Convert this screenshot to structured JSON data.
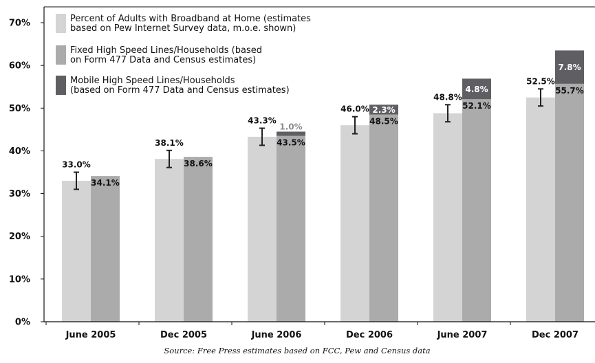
{
  "chart_data": {
    "type": "bar",
    "categories": [
      "June 2005",
      "Dec 2005",
      "June 2006",
      "Dec 2006",
      "June 2007",
      "Dec 2007"
    ],
    "ylim": [
      0,
      70
    ],
    "yticks": [
      0,
      10,
      20,
      30,
      40,
      50,
      60,
      70
    ],
    "ytick_labels": [
      "0%",
      "10%",
      "20%",
      "30%",
      "40%",
      "50%",
      "60%",
      "70%"
    ],
    "grid": false,
    "legend_position": "top-left",
    "source": "Source: Free Press estimates based on FCC, Pew and Census data",
    "series": [
      {
        "name": "Percent of Adults with Broadband at Home (estimates based on Pew Internet Survey data, m.o.e. shown)",
        "legend_lines": [
          "Percent of Adults with Broadband at Home (estimates",
          "based on Pew Internet Survey data, m.o.e. shown)"
        ],
        "values": [
          33.0,
          38.1,
          43.3,
          46.0,
          48.8,
          52.5
        ],
        "labels": [
          "33.0%",
          "38.1%",
          "43.3%",
          "46.0%",
          "48.8%",
          "52.5%"
        ],
        "error_margin": [
          2,
          2,
          2,
          2,
          2,
          2
        ],
        "color": "#d4d4d4"
      },
      {
        "name": "Fixed High Speed Lines/Households (based on Form 477 Data and Census estimates)",
        "legend_lines": [
          "Fixed High Speed Lines/Households (based",
          "on Form 477 Data and Census estimates)"
        ],
        "values": [
          34.1,
          38.6,
          43.5,
          48.5,
          52.1,
          55.7
        ],
        "labels": [
          "34.1%",
          "38.6%",
          "43.5%",
          "48.5%",
          "52.1%",
          "55.7%"
        ],
        "color": "#ababab"
      },
      {
        "name": "Mobile High Speed Lines/Households (based on Form 477 Data and Census estimates)",
        "legend_lines": [
          "Mobile High Speed Lines/Households",
          "(based on Form 477 Data and Census estimates)"
        ],
        "values": [
          null,
          null,
          1.0,
          2.3,
          4.8,
          7.8
        ],
        "labels": [
          "",
          "",
          "1.0%",
          "2.3%",
          "4.8%",
          "7.8%"
        ],
        "stacked_on": "Fixed High Speed Lines/Households (based on Form 477 Data and Census estimates)",
        "color": "#5f5f63"
      }
    ]
  }
}
